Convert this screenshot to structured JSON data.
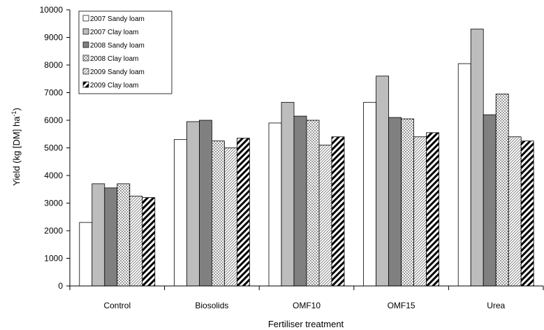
{
  "chart_data": {
    "type": "bar",
    "title": "",
    "xlabel": "Fertiliser treatment",
    "ylabel_main": "Yield (kg [DM] ha",
    "ylabel_sup": "-1",
    "ylabel_close": ")",
    "ylim": [
      0,
      10000
    ],
    "yticks": [
      0,
      1000,
      2000,
      3000,
      4000,
      5000,
      6000,
      7000,
      8000,
      9000,
      10000
    ],
    "grid": false,
    "legend_position": "top-left",
    "categories": [
      "Control",
      "Biosolids",
      "OMF10",
      "OMF15",
      "Urea"
    ],
    "series": [
      {
        "name": "2007 Sandy loam",
        "values": [
          2300,
          5300,
          5900,
          6650,
          8050
        ],
        "fill": "#ffffff",
        "pattern": "none"
      },
      {
        "name": "2007 Clay loam",
        "values": [
          3700,
          5950,
          6650,
          7600,
          9300
        ],
        "fill": "#bdbdbd",
        "pattern": "none"
      },
      {
        "name": "2008 Sandy loam",
        "values": [
          3550,
          6000,
          6150,
          6100,
          6200
        ],
        "fill": "#808080",
        "pattern": "none"
      },
      {
        "name": "2008 Clay loam",
        "values": [
          3700,
          5250,
          6000,
          6050,
          6950
        ],
        "fill": "#ffffff",
        "pattern": "dots"
      },
      {
        "name": "2009 Sandy loam",
        "values": [
          3250,
          5000,
          5100,
          5400,
          5400
        ],
        "fill": "#ffffff",
        "pattern": "thin-diag"
      },
      {
        "name": "2009 Clay loam",
        "values": [
          3200,
          5350,
          5400,
          5550,
          5250
        ],
        "fill": "#ffffff",
        "pattern": "thick-diag"
      }
    ]
  }
}
